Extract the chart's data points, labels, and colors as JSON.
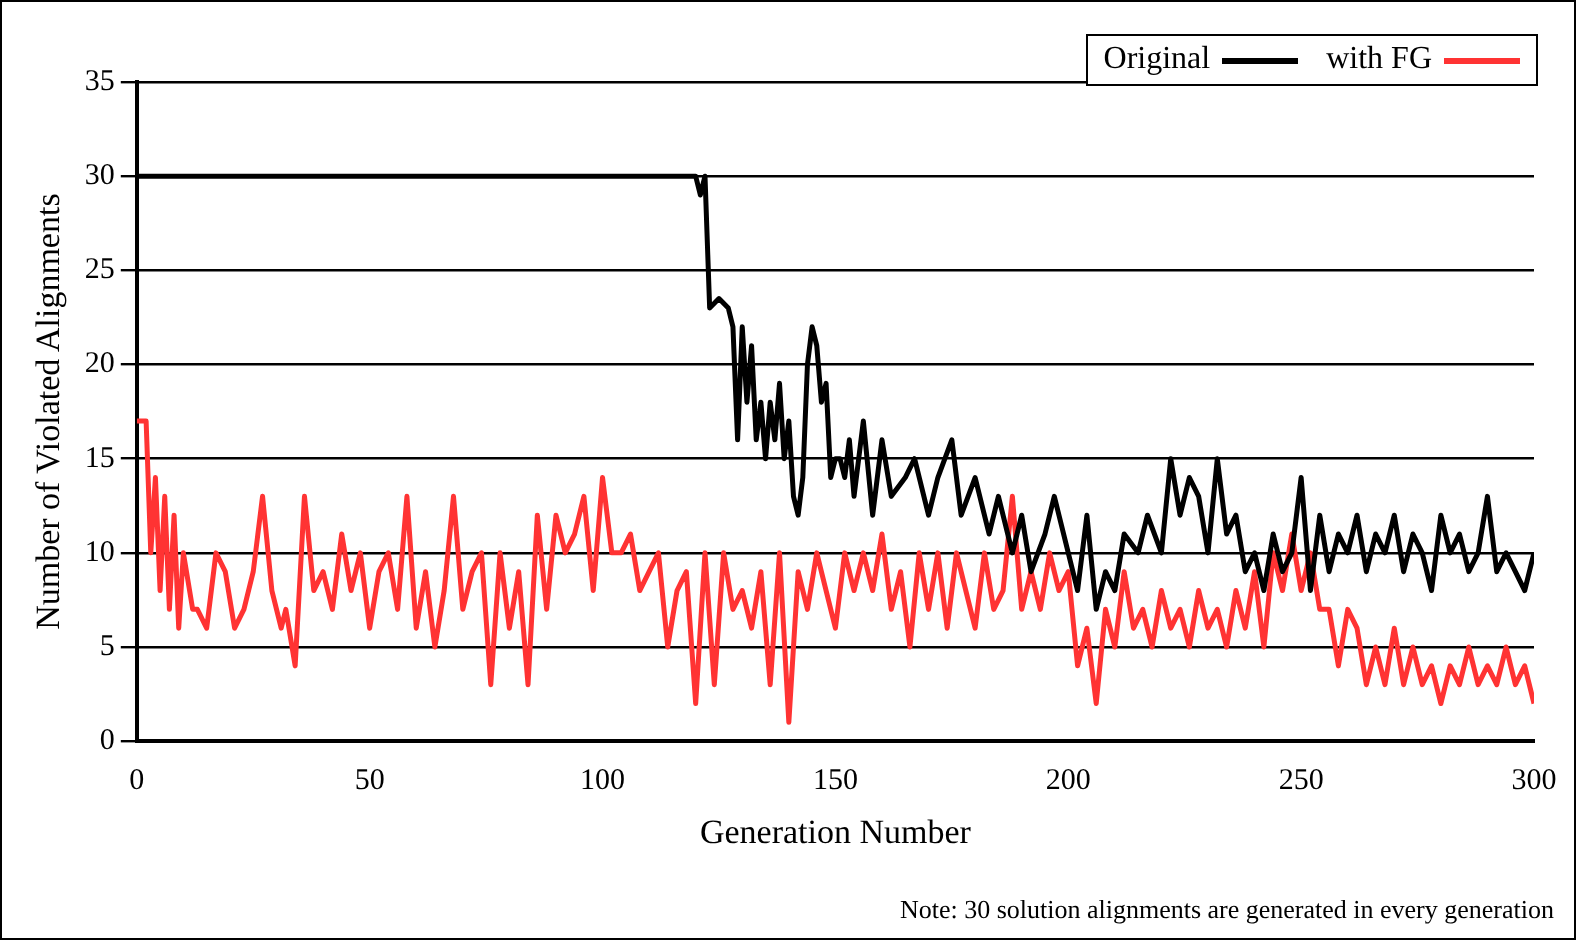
{
  "chart_data": {
    "type": "line",
    "xlabel": "Generation Number",
    "ylabel": "Number of Violated Alignments",
    "xlim": [
      0,
      300
    ],
    "xticks": [
      0,
      50,
      100,
      150,
      200,
      250,
      300
    ],
    "ylim": [
      0,
      35
    ],
    "yticks": [
      0,
      5,
      10,
      15,
      20,
      25,
      30,
      35
    ],
    "grid": "y",
    "legend": "top right",
    "marker": "none",
    "line_style": "solid",
    "annotations": [
      "Note: 30 solution alignments are generated in every generation"
    ],
    "series": [
      {
        "name": "Original",
        "color": "#000000",
        "x": [
          0,
          60,
          120,
          121,
          122,
          123,
          125,
          127,
          128,
          129,
          130,
          131,
          132,
          133,
          134,
          135,
          136,
          137,
          138,
          139,
          140,
          141,
          142,
          143,
          144,
          145,
          146,
          147,
          148,
          149,
          150,
          151,
          152,
          153,
          154,
          155,
          156,
          158,
          160,
          162,
          165,
          167,
          170,
          172,
          175,
          177,
          180,
          183,
          185,
          188,
          190,
          192,
          195,
          197,
          200,
          202,
          204,
          206,
          208,
          210,
          212,
          215,
          217,
          220,
          222,
          224,
          226,
          228,
          230,
          232,
          234,
          236,
          238,
          240,
          242,
          244,
          246,
          248,
          250,
          252,
          254,
          256,
          258,
          260,
          262,
          264,
          266,
          268,
          270,
          272,
          274,
          276,
          278,
          280,
          282,
          284,
          286,
          288,
          290,
          292,
          294,
          296,
          298,
          300
        ],
        "values": [
          30,
          30,
          30,
          29,
          30,
          23,
          23.5,
          23,
          22,
          16,
          22,
          18,
          21,
          16,
          18,
          15,
          18,
          16,
          19,
          15,
          17,
          13,
          12,
          14,
          20,
          22,
          21,
          18,
          19,
          14,
          15,
          15,
          14,
          16,
          13,
          15,
          17,
          12,
          16,
          13,
          14,
          15,
          12,
          14,
          16,
          12,
          14,
          11,
          13,
          10,
          12,
          9,
          11,
          13,
          10,
          8,
          12,
          7,
          9,
          8,
          11,
          10,
          12,
          10,
          15,
          12,
          14,
          13,
          10,
          15,
          11,
          12,
          9,
          10,
          8,
          11,
          9,
          10,
          14,
          8,
          12,
          9,
          11,
          10,
          12,
          9,
          11,
          10,
          12,
          9,
          11,
          10,
          8,
          12,
          10,
          11,
          9,
          10,
          13,
          9,
          10,
          9,
          8,
          10
        ]
      },
      {
        "name": "with FG",
        "color": "#ff3333",
        "x": [
          0,
          2,
          3,
          4,
          5,
          6,
          7,
          8,
          9,
          10,
          12,
          13,
          15,
          17,
          19,
          21,
          23,
          25,
          27,
          29,
          31,
          32,
          34,
          36,
          38,
          40,
          42,
          44,
          46,
          48,
          50,
          52,
          54,
          56,
          58,
          60,
          62,
          64,
          66,
          68,
          70,
          72,
          74,
          76,
          78,
          80,
          82,
          84,
          86,
          88,
          90,
          92,
          94,
          96,
          98,
          100,
          102,
          104,
          106,
          108,
          110,
          112,
          114,
          116,
          118,
          120,
          122,
          124,
          126,
          128,
          130,
          132,
          134,
          136,
          138,
          140,
          142,
          144,
          146,
          148,
          150,
          152,
          154,
          156,
          158,
          160,
          162,
          164,
          166,
          168,
          170,
          172,
          174,
          176,
          178,
          180,
          182,
          184,
          186,
          188,
          190,
          192,
          194,
          196,
          198,
          200,
          202,
          204,
          206,
          208,
          210,
          212,
          214,
          216,
          218,
          220,
          222,
          224,
          226,
          228,
          230,
          232,
          234,
          236,
          238,
          240,
          242,
          244,
          246,
          248,
          250,
          252,
          254,
          256,
          258,
          260,
          262,
          264,
          266,
          268,
          270,
          272,
          274,
          276,
          278,
          280,
          282,
          284,
          286,
          288,
          290,
          292,
          294,
          296,
          298,
          300
        ],
        "values": [
          17,
          17,
          10,
          14,
          8,
          13,
          7,
          12,
          6,
          10,
          7,
          7,
          6,
          10,
          9,
          6,
          7,
          9,
          13,
          8,
          6,
          7,
          4,
          13,
          8,
          9,
          7,
          11,
          8,
          10,
          6,
          9,
          10,
          7,
          13,
          6,
          9,
          5,
          8,
          13,
          7,
          9,
          10,
          3,
          10,
          6,
          9,
          3,
          12,
          7,
          12,
          10,
          11,
          13,
          8,
          14,
          10,
          10,
          11,
          8,
          9,
          10,
          5,
          8,
          9,
          2,
          10,
          3,
          10,
          7,
          8,
          6,
          9,
          3,
          10,
          1,
          9,
          7,
          10,
          8,
          6,
          10,
          8,
          10,
          8,
          11,
          7,
          9,
          5,
          10,
          7,
          10,
          6,
          10,
          8,
          6,
          10,
          7,
          8,
          13,
          7,
          9,
          7,
          10,
          8,
          9,
          4,
          6,
          2,
          7,
          5,
          9,
          6,
          7,
          5,
          8,
          6,
          7,
          5,
          8,
          6,
          7,
          5,
          8,
          6,
          9,
          5,
          10,
          8,
          11,
          8,
          10,
          7,
          7,
          4,
          7,
          6,
          3,
          5,
          3,
          6,
          3,
          5,
          3,
          4,
          2,
          4,
          3,
          5,
          3,
          4,
          3,
          5,
          3,
          4,
          2
        ]
      }
    ]
  }
}
